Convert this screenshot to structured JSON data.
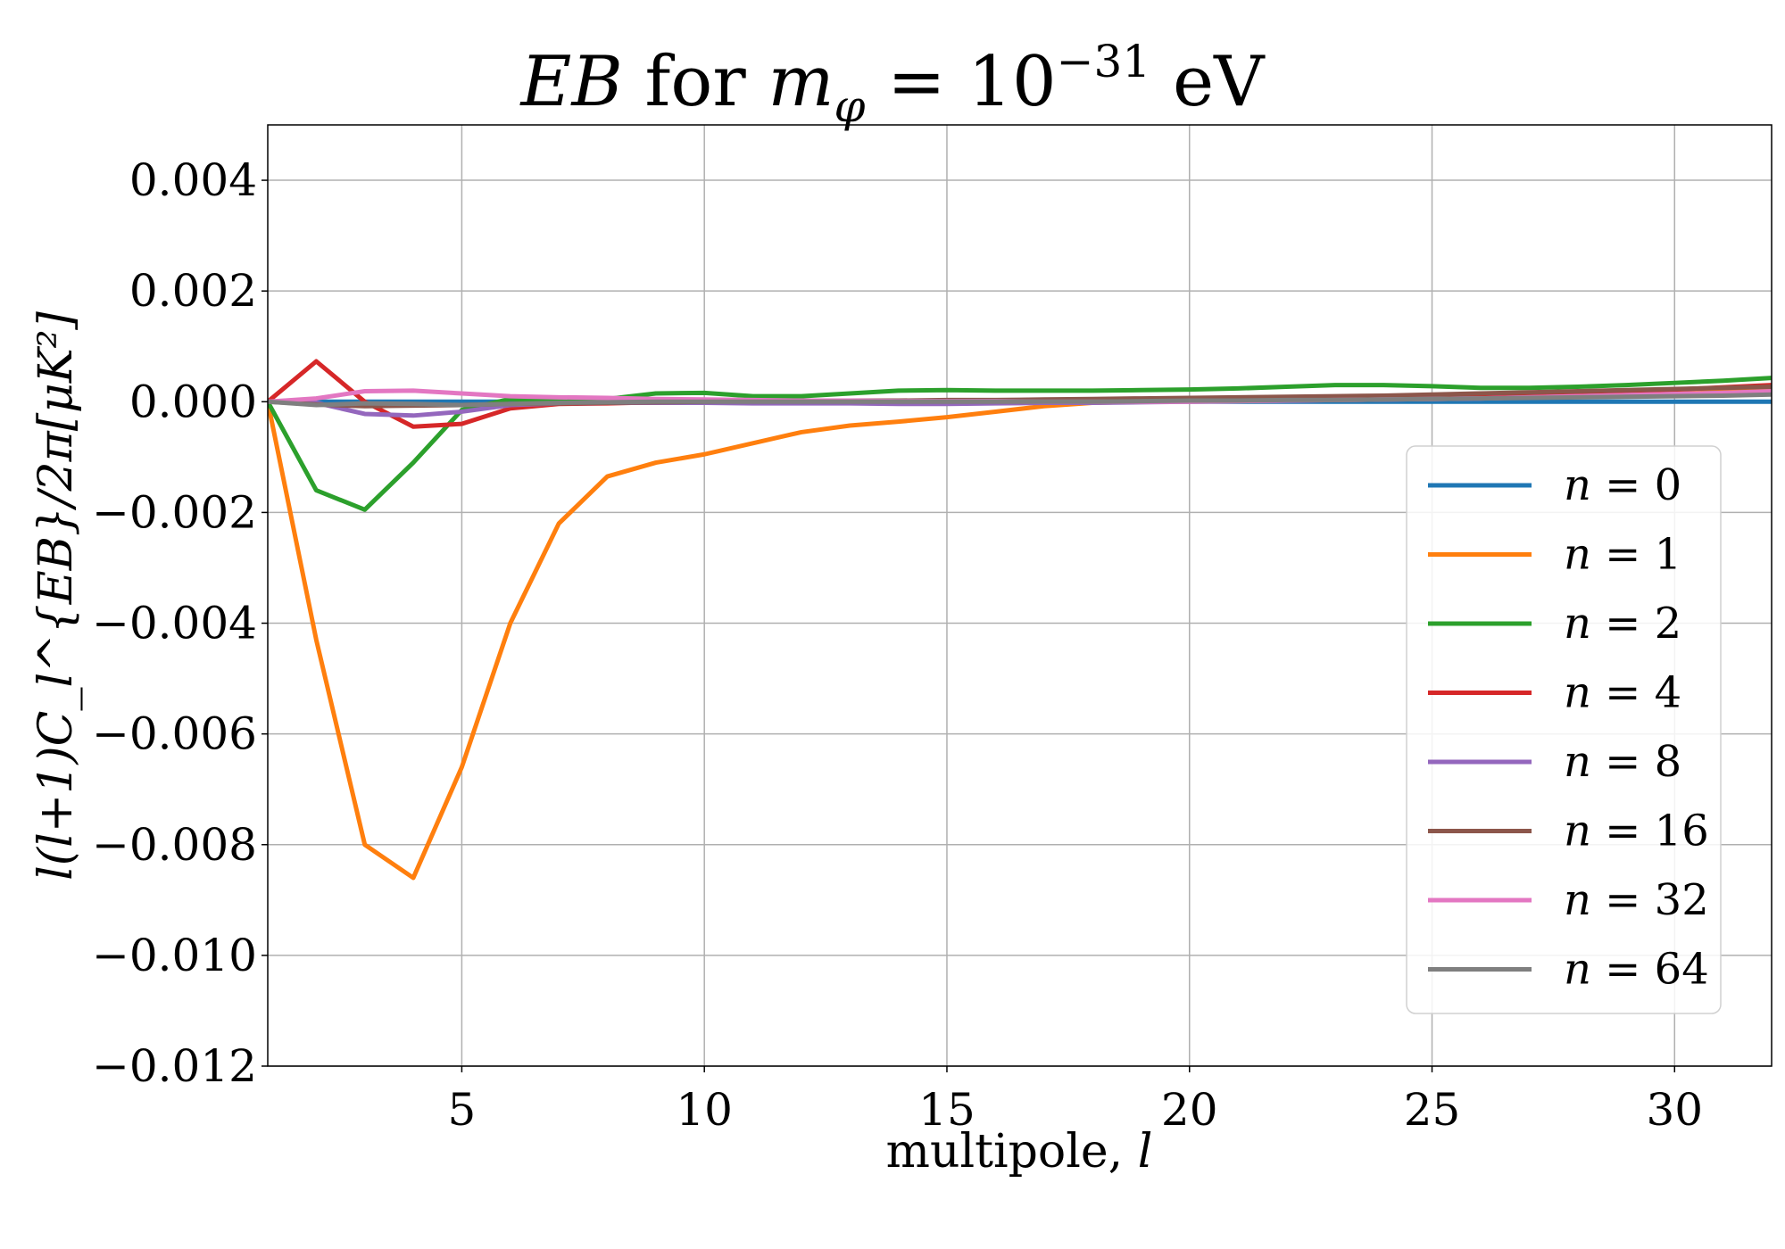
{
  "chart_data": {
    "type": "line",
    "title": "EB for m_φ = 10^−31 eV",
    "title_parts": {
      "eb": "EB",
      "for": " for ",
      "m": "m",
      "phi": "φ",
      "eq": " = 10",
      "exp": "−31",
      "unit": " eV"
    },
    "xlabel": "multipole, l",
    "xlabel_parts": {
      "text": "multipole, ",
      "var": "l"
    },
    "ylabel": "l(l+1)C_l^{EB}/2π[μK²]",
    "xlim": [
      1,
      32
    ],
    "ylim": [
      -0.012,
      0.005
    ],
    "xticks": [
      5,
      10,
      15,
      20,
      25,
      30
    ],
    "xtick_labels": [
      "5",
      "10",
      "15",
      "20",
      "25",
      "30"
    ],
    "yticks": [
      -0.012,
      -0.01,
      -0.008,
      -0.006,
      -0.004,
      -0.002,
      0.0,
      0.002,
      0.004
    ],
    "ytick_labels": [
      "−0.012",
      "−0.010",
      "−0.008",
      "−0.006",
      "−0.004",
      "−0.002",
      "0.000",
      "0.002",
      "0.004"
    ],
    "grid": true,
    "legend_position": "right",
    "x": [
      1,
      2,
      3,
      4,
      5,
      6,
      7,
      8,
      9,
      10,
      11,
      12,
      13,
      14,
      15,
      16,
      17,
      18,
      19,
      20,
      21,
      22,
      23,
      24,
      25,
      26,
      27,
      28,
      29,
      30,
      31,
      32
    ],
    "series": [
      {
        "name": "n = 0",
        "label": "0",
        "color": "#1f77b4",
        "values": [
          0,
          0,
          0,
          0,
          0,
          0,
          0,
          0,
          0,
          0,
          0,
          0,
          0,
          0,
          0,
          0,
          0,
          0,
          0,
          0,
          0,
          0,
          0,
          0,
          0,
          0,
          0,
          0,
          0,
          0,
          0,
          0
        ]
      },
      {
        "name": "n = 1",
        "label": "1",
        "color": "#ff7f0e",
        "values": [
          0,
          -0.0043,
          -0.008,
          -0.0086,
          -0.0066,
          -0.004,
          -0.0022,
          -0.00135,
          -0.0011,
          -0.00095,
          -0.00075,
          -0.00055,
          -0.00043,
          -0.00036,
          -0.00028,
          -0.00018,
          -8e-05,
          -2e-05,
          0,
          2e-05,
          4e-05,
          5e-05,
          6e-05,
          7e-05,
          9e-05,
          0.00011,
          0.00013,
          0.00015,
          0.00017,
          0.0002,
          0.00023,
          0.00026
        ]
      },
      {
        "name": "n = 2",
        "label": "2",
        "color": "#2ca02c",
        "values": [
          0,
          -0.0016,
          -0.00195,
          -0.0011,
          -0.00015,
          5e-05,
          2e-05,
          5e-05,
          0.00015,
          0.00016,
          0.0001,
          0.0001,
          0.00015,
          0.0002,
          0.00021,
          0.0002,
          0.0002,
          0.0002,
          0.00021,
          0.00022,
          0.00024,
          0.00027,
          0.0003,
          0.0003,
          0.00028,
          0.00025,
          0.00025,
          0.00027,
          0.0003,
          0.00034,
          0.00038,
          0.00043
        ]
      },
      {
        "name": "n = 4",
        "label": "4",
        "color": "#d62728",
        "values": [
          0,
          0.00073,
          0,
          -0.00045,
          -0.0004,
          -0.00012,
          -4e-05,
          -3e-05,
          -1e-05,
          0,
          0,
          0,
          0,
          0,
          0,
          1e-05,
          2e-05,
          3e-05,
          4e-05,
          5e-05,
          6e-05,
          7e-05,
          8e-05,
          9e-05,
          0.0001,
          0.00012,
          0.00014,
          0.00016,
          0.00019,
          0.00022,
          0.00026,
          0.0003
        ]
      },
      {
        "name": "n = 8",
        "label": "8",
        "color": "#9467bd",
        "values": [
          0,
          -2e-05,
          -0.00022,
          -0.00025,
          -0.00018,
          -6e-05,
          -3e-05,
          -2e-05,
          -2e-05,
          -2e-05,
          -3e-05,
          -3e-05,
          -3e-05,
          -4e-05,
          -4e-05,
          -3e-05,
          -2e-05,
          -2e-05,
          -1e-05,
          0,
          1e-05,
          2e-05,
          3e-05,
          4e-05,
          5e-05,
          6e-05,
          8e-05,
          0.0001,
          0.00012,
          0.00014,
          0.00016,
          0.00018
        ]
      },
      {
        "name": "n = 16",
        "label": "16",
        "color": "#8c564b",
        "values": [
          0,
          -5e-05,
          -8e-05,
          -7e-05,
          -6e-05,
          -4e-05,
          -3e-05,
          -2e-05,
          -1e-05,
          0,
          1e-05,
          1e-05,
          2e-05,
          2e-05,
          3e-05,
          3e-05,
          4e-05,
          5e-05,
          6e-05,
          7e-05,
          8e-05,
          9e-05,
          0.0001,
          0.00011,
          0.00013,
          0.00015,
          0.00017,
          0.00019,
          0.00021,
          0.00023,
          0.00025,
          0.00027
        ]
      },
      {
        "name": "n = 32",
        "label": "32",
        "color": "#e377c2",
        "values": [
          0,
          6e-05,
          0.00019,
          0.0002,
          0.00015,
          0.0001,
          8e-05,
          7e-05,
          5e-05,
          4e-05,
          3e-05,
          2e-05,
          2e-05,
          1e-05,
          1e-05,
          1e-05,
          0,
          0,
          0,
          0,
          1e-05,
          2e-05,
          3e-05,
          4e-05,
          5e-05,
          6e-05,
          8e-05,
          0.0001,
          0.00012,
          0.00014,
          0.00016,
          0.00019
        ]
      },
      {
        "name": "n = 64",
        "label": "64",
        "color": "#7f7f7f",
        "values": [
          0,
          -6e-05,
          -3e-05,
          -4e-05,
          -6e-05,
          -4e-05,
          -2e-05,
          -1e-05,
          0,
          0,
          0,
          0,
          0,
          0,
          0,
          0,
          0,
          0,
          1e-05,
          2e-05,
          2e-05,
          3e-05,
          3e-05,
          4e-05,
          5e-05,
          6e-05,
          7e-05,
          8e-05,
          9e-05,
          0.0001,
          0.00011,
          0.00013
        ]
      }
    ]
  }
}
